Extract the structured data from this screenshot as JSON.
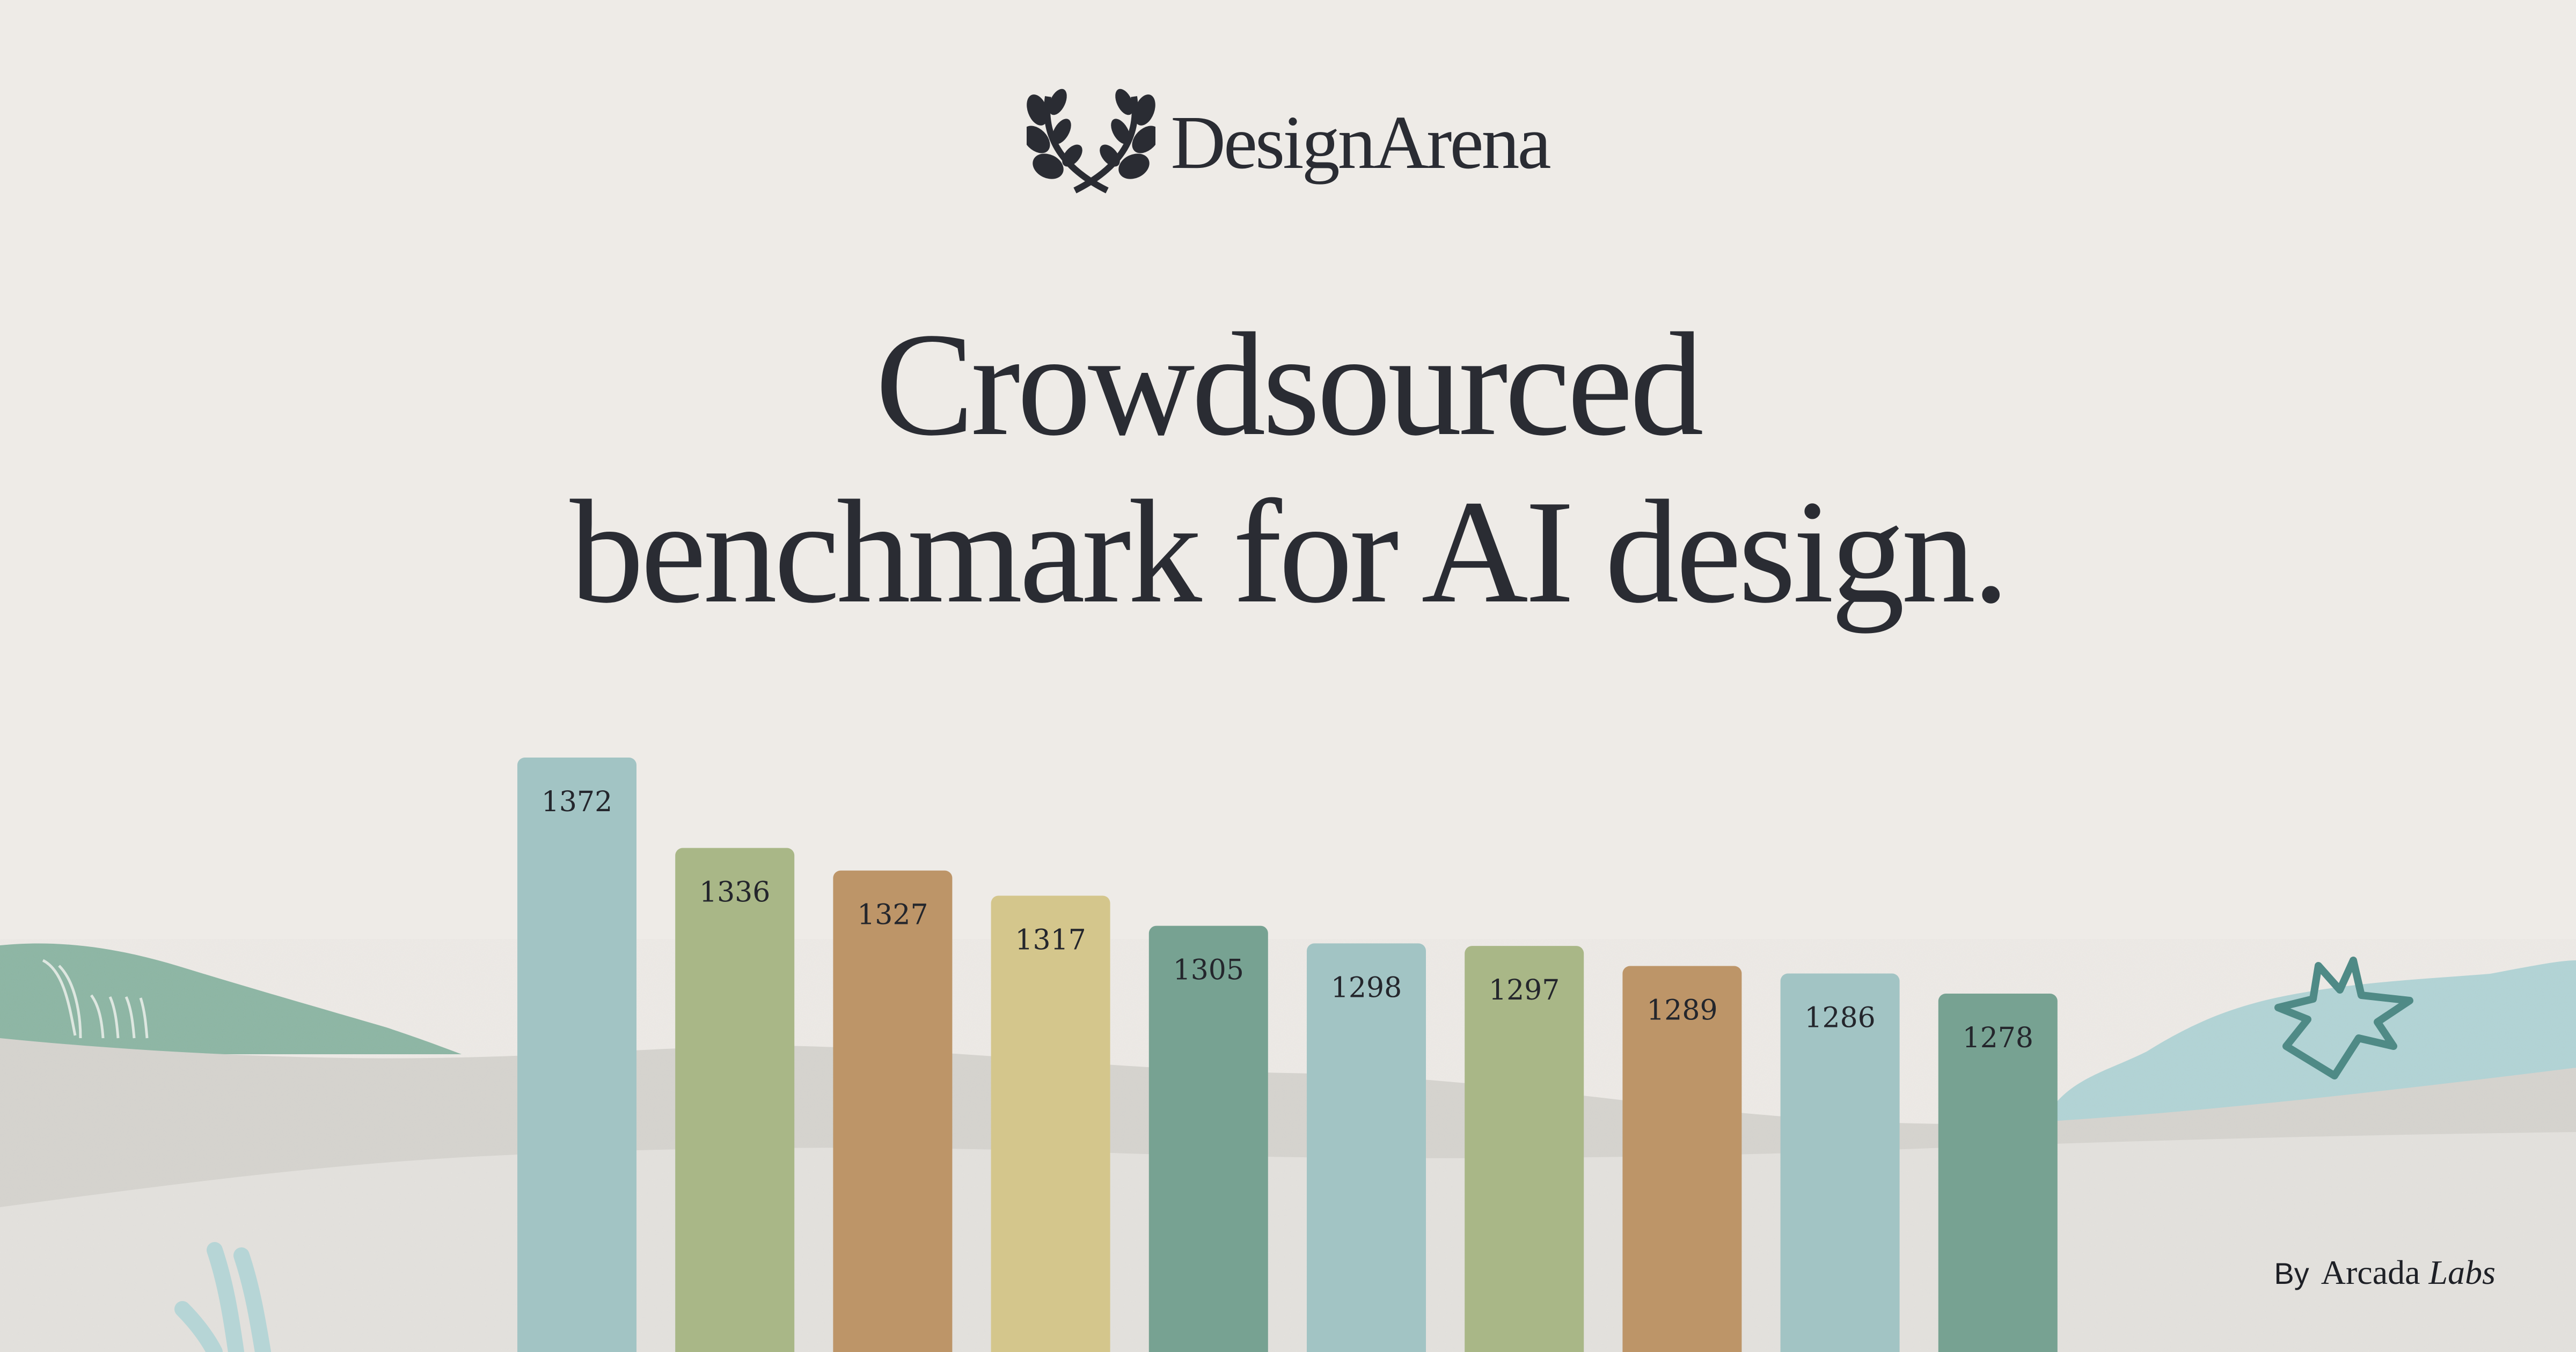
{
  "brand": {
    "name": "DesignArena",
    "logo_icon": "laurel-wreath-icon"
  },
  "headline": {
    "line1": "Crowdsourced",
    "line2": "benchmark for AI design."
  },
  "credit": {
    "by": "By",
    "name": "Arcada",
    "suffix": "Labs"
  },
  "colors": {
    "background": "#eeebe7",
    "text": "#2a2c33",
    "hill_green": "#8bb5a3",
    "hill_blue": "#b1d4d6",
    "ground": "#d9d7d2",
    "accent_teal": "#4f8a86"
  },
  "chart_data": {
    "type": "bar",
    "values": [
      1372,
      1336,
      1327,
      1317,
      1305,
      1298,
      1297,
      1289,
      1286,
      1278
    ],
    "bar_colors": [
      "#a2c4c4",
      "#a9b787",
      "#bd9568",
      "#d4c68c",
      "#77a292",
      "#a2c4c4",
      "#a9b787",
      "#bd9568",
      "#a2c4c4",
      "#77a292"
    ],
    "grid": false,
    "axes": false
  }
}
